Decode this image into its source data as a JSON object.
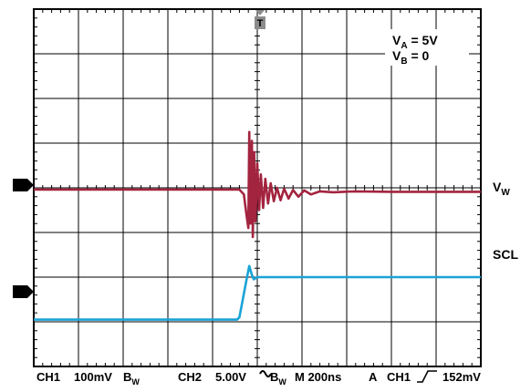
{
  "chart_data": {
    "type": "line",
    "title": "",
    "xlabel": "",
    "ylabel": "",
    "grid": true,
    "grid_divisions": {
      "x": 10,
      "y": 8
    },
    "trigger_marker": "T",
    "annotation": {
      "va_label": "V",
      "va_sub": "A",
      "va_value": " = 5V",
      "vb_label": "V",
      "vb_sub": "B",
      "vb_value": " = 0"
    },
    "channel_markers": [
      "1",
      "2"
    ],
    "series": [
      {
        "name": "VW",
        "label_main": "V",
        "label_sub": "W",
        "color": "#A3243F",
        "x_divisions": [
          0,
          4.6,
          4.7,
          4.75,
          4.8,
          4.82,
          4.85,
          4.88,
          4.9,
          4.93,
          4.96,
          5.0,
          5.04,
          5.08,
          5.13,
          5.18,
          5.24,
          5.3,
          5.37,
          5.44,
          5.52,
          5.6,
          5.7,
          5.8,
          5.92,
          6.05,
          6.2,
          6.4,
          6.7,
          7.2,
          8.0,
          10.0
        ],
        "y_divisions": [
          -0.04,
          -0.04,
          -0.15,
          -0.55,
          -0.9,
          1.25,
          -0.8,
          1.05,
          -1.1,
          0.8,
          -0.75,
          0.55,
          -0.5,
          0.3,
          -0.45,
          0.2,
          -0.35,
          0.1,
          -0.3,
          0.0,
          -0.28,
          -0.02,
          -0.24,
          -0.05,
          -0.2,
          -0.06,
          -0.15,
          -0.08,
          -0.1,
          -0.08,
          -0.09,
          -0.09
        ]
      },
      {
        "name": "SCL",
        "label_main": "SCL",
        "label_sub": "",
        "color": "#1AA3D6",
        "x_divisions": [
          0,
          4.55,
          4.6,
          4.75,
          4.82,
          4.88,
          4.92,
          5.0,
          10.0
        ],
        "y_divisions": [
          -2.95,
          -2.95,
          -2.9,
          -2.1,
          -1.75,
          -1.95,
          -2.05,
          -2.0,
          -2.0
        ]
      }
    ]
  },
  "status_bar": {
    "ch1": "CH1",
    "ch1_scale": "100mV",
    "bw1_main": "B",
    "bw1_sub": "W",
    "ch2": "CH2",
    "ch2_scale": "5.00V",
    "bw2_main": "B",
    "bw2_sub": "W",
    "timebase": "M 200ns",
    "trigger_mode": "A",
    "trigger_source": "CH1",
    "trigger_level": "152mV"
  }
}
